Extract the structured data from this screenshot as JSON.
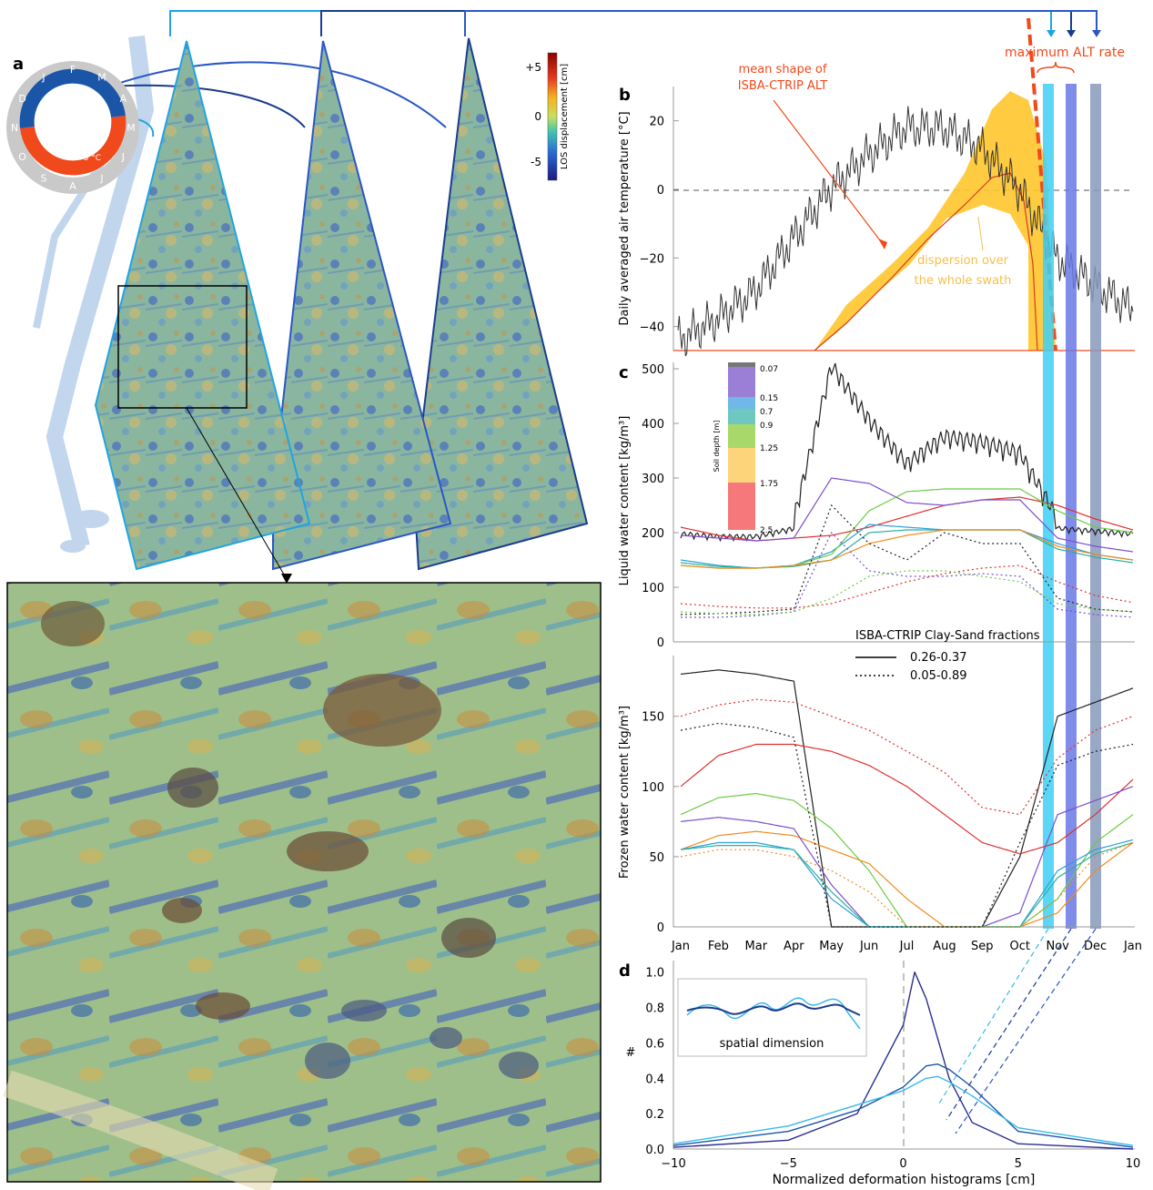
{
  "panel_letters": {
    "a": "a",
    "b": "b",
    "c": "c",
    "d": "d"
  },
  "colors": {
    "dark_blue": "#1a3c8f",
    "mid_blue": "#2a56c6",
    "cyan": "#3ab9e8",
    "orange_red": "#f0491b",
    "fill_yellow": "#ffc72c",
    "bar_cyan": "#3fd0f5",
    "bar_blue": "#6a78e6",
    "bar_slate": "#8899bb"
  },
  "panel_a": {
    "colorbar_label": "LOS displacement [cm]",
    "colorbar_ticks": [
      "+5",
      "0",
      "-5"
    ],
    "cycle_months_outer": [
      "J",
      "F",
      "M",
      "A",
      "M",
      "J",
      "J",
      "A",
      "S",
      "O",
      "N",
      "D"
    ],
    "cold_label": "T < 0 °C",
    "warm_label": "T > 0 °C"
  },
  "panel_b": {
    "ylabel": "Daily averaged air temperature [°C]",
    "yticks": [
      "20",
      "0",
      "−20",
      "−40"
    ],
    "annotations": {
      "mean_shape": [
        "mean shape of",
        "ISBA-CTRIP ALT"
      ],
      "dispersion": [
        "dispersion over",
        "the whole swath"
      ],
      "max_alt": "maximum ALT rate"
    }
  },
  "panel_c": {
    "ylabel_top": "Liquid water content [kg/m³]",
    "yticks_top": [
      "500",
      "400",
      "300",
      "200",
      "100",
      "0"
    ],
    "ylabel_bottom": "Frozen water content [kg/m³]",
    "yticks_bottom": [
      "150",
      "100",
      "50",
      "0"
    ],
    "soil_depth_label": "Soil depth [m]",
    "soil_depth_ticks": [
      "0.07",
      "0.15",
      "0.7",
      "0.9",
      "1.25",
      "1.75",
      "2.5"
    ],
    "legend_title": "ISBA-CTRIP Clay-Sand fractions",
    "legend_solid": "0.26-0.37",
    "legend_dotted": "0.05-0.89",
    "months": [
      "Jan",
      "Feb",
      "Mar",
      "Apr",
      "May",
      "Jun",
      "Jul",
      "Aug",
      "Sep",
      "Oct",
      "Nov",
      "Dec",
      "Jan"
    ]
  },
  "panel_d": {
    "xlabel": "Normalized deformation histograms [cm]",
    "ylabel": "#",
    "xticks": [
      "−10",
      "−5",
      "0",
      "5",
      "10"
    ],
    "yticks": [
      "1.0",
      "0.8",
      "0.6",
      "0.4",
      "0.2",
      "0.0"
    ],
    "inset_label": "spatial dimension"
  },
  "chart_data": [
    {
      "type": "line",
      "title": "",
      "ylabel": "Daily averaged air temperature [°C]",
      "ylim": [
        -47,
        30
      ],
      "x": [
        "Jan",
        "Feb",
        "Mar",
        "Apr",
        "May",
        "Jun",
        "Jul",
        "Aug",
        "Sep",
        "Oct",
        "Nov",
        "Dec",
        "Jan"
      ],
      "series": [
        {
          "name": "",
          "values": [
            -44,
            -38,
            -30,
            -15,
            0,
            10,
            18,
            18,
            12,
            0,
            -20,
            -28,
            -35
          ]
        }
      ]
    },
    {
      "type": "line",
      "ylabel": "Liquid water content [kg/m³]",
      "ylim": [
        0,
        500
      ],
      "x": [
        "Jan",
        "Feb",
        "Mar",
        "Apr",
        "May",
        "Jun",
        "Jul",
        "Aug",
        "Sep",
        "Oct",
        "Nov",
        "Dec",
        "Jan"
      ],
      "series": [
        {
          "name": "0.07",
          "values": [
            190,
            185,
            185,
            200,
            480,
            380,
            300,
            350,
            340,
            320,
            200,
            195,
            190
          ]
        },
        {
          "name": "2.5",
          "values": [
            210,
            195,
            185,
            190,
            195,
            210,
            230,
            250,
            260,
            265,
            250,
            225,
            205
          ]
        }
      ]
    },
    {
      "type": "line",
      "ylabel": "Frozen water content [kg/m³]",
      "ylim": [
        0,
        190
      ],
      "x": [
        "Jan",
        "Feb",
        "Mar",
        "Apr",
        "May",
        "Jun",
        "Jul",
        "Aug",
        "Sep",
        "Oct",
        "Nov",
        "Dec",
        "Jan"
      ],
      "series": [
        {
          "name": "0.07",
          "values": [
            180,
            183,
            180,
            175,
            0,
            0,
            0,
            0,
            0,
            50,
            150,
            160,
            170
          ]
        },
        {
          "name": "2.5",
          "values": [
            100,
            122,
            130,
            130,
            125,
            115,
            100,
            80,
            60,
            52,
            60,
            80,
            105
          ]
        }
      ]
    },
    {
      "type": "line",
      "xlabel": "Normalized deformation histograms [cm]",
      "ylabel": "#",
      "xlim": [
        -10,
        10
      ],
      "ylim": [
        0,
        1.05
      ],
      "series": [
        {
          "name": "",
          "x": [
            -10,
            -5,
            -2,
            0,
            0.5,
            1,
            2,
            3,
            5,
            10
          ],
          "values": [
            0.01,
            0.05,
            0.2,
            0.7,
            1.0,
            0.85,
            0.4,
            0.15,
            0.03,
            0.0
          ]
        },
        {
          "name": "",
          "x": [
            -10,
            -5,
            -2,
            0,
            1,
            1.5,
            2,
            3,
            5,
            10
          ],
          "values": [
            0.02,
            0.1,
            0.22,
            0.35,
            0.47,
            0.48,
            0.45,
            0.35,
            0.1,
            0.01
          ]
        },
        {
          "name": "",
          "x": [
            -10,
            -5,
            -2,
            0,
            1,
            1.5,
            2,
            3,
            5,
            10
          ],
          "values": [
            0.03,
            0.13,
            0.25,
            0.33,
            0.4,
            0.41,
            0.38,
            0.3,
            0.12,
            0.02
          ]
        }
      ]
    }
  ]
}
